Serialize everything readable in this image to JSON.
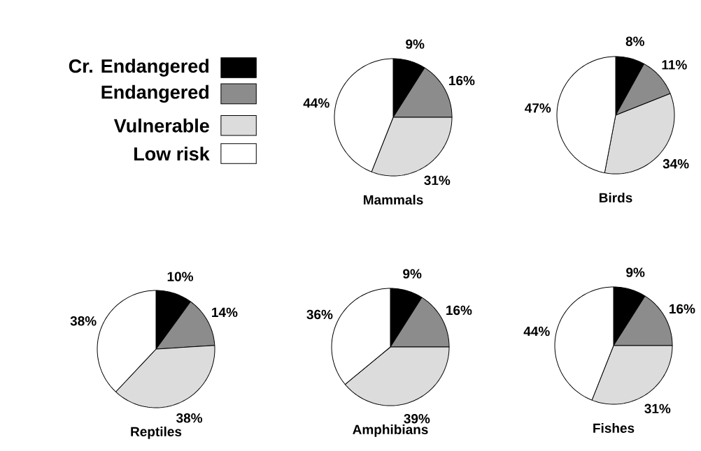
{
  "chart_data": [
    {
      "type": "pie",
      "title": "Mammals",
      "categories": [
        "Cr. Endangered",
        "Endangered",
        "Vulnerable",
        "Low risk"
      ],
      "values": [
        9,
        16,
        31,
        44
      ],
      "value_labels": [
        "9%",
        "16%",
        "31%",
        "44%"
      ],
      "colors": [
        "#000000",
        "#8c8c8c",
        "#dcdcdc",
        "#ffffff"
      ],
      "legend": "left"
    },
    {
      "type": "pie",
      "title": "Birds",
      "categories": [
        null,
        null,
        null,
        null
      ],
      "values": [
        8,
        11,
        34,
        47
      ],
      "value_labels": [
        "8%",
        "11%",
        "34%",
        "47%"
      ],
      "colors": [
        "#000000",
        "#8c8c8c",
        "#dcdcdc",
        "#ffffff"
      ]
    },
    {
      "type": "pie",
      "title": "Reptiles",
      "categories": [
        null,
        null,
        null,
        null
      ],
      "values": [
        10,
        14,
        38,
        38
      ],
      "value_labels": [
        "10%",
        "14%",
        "38%",
        "38%"
      ],
      "colors": [
        "#000000",
        "#8c8c8c",
        "#dcdcdc",
        "#ffffff"
      ]
    },
    {
      "type": "pie",
      "title": "Amphibians",
      "categories": [
        null,
        null,
        null,
        null
      ],
      "values": [
        9,
        16,
        39,
        36
      ],
      "value_labels": [
        "9%",
        "16%",
        "39%",
        "36%"
      ],
      "colors": [
        "#000000",
        "#8c8c8c",
        "#dcdcdc",
        "#ffffff"
      ]
    },
    {
      "type": "pie",
      "title": "Fishes",
      "categories": [
        null,
        null,
        null,
        null
      ],
      "values": [
        9,
        16,
        31,
        44
      ],
      "value_labels": [
        "9%",
        "16%",
        "31%",
        "44%"
      ],
      "colors": [
        "#000000",
        "#8c8c8c",
        "#dcdcdc",
        "#ffffff"
      ]
    }
  ]
}
